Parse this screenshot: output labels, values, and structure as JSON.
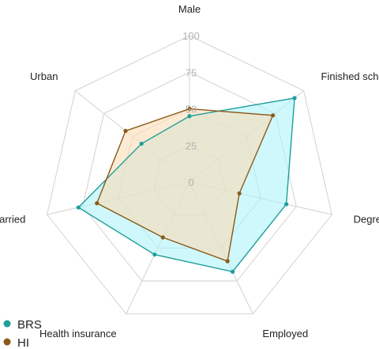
{
  "chart_data": {
    "type": "radar",
    "axes": [
      "Male",
      "Finished school",
      "Degree",
      "Employed",
      "Health insurance",
      "Married",
      "Urban"
    ],
    "r_ticks": [
      "0",
      "25",
      "50",
      "75",
      "100"
    ],
    "r_range": [
      0,
      100
    ],
    "series": [
      {
        "name": "BRS",
        "color": "#1f9e9a",
        "fill": "#aef4f8",
        "values": [
          45,
          92,
          68,
          68,
          55,
          78,
          42
        ]
      },
      {
        "name": "HI",
        "color": "#8a5a1a",
        "fill": "#fbdcb5",
        "values": [
          50,
          73,
          35,
          60,
          42,
          65,
          56
        ]
      }
    ],
    "legend_position": "bottom-left",
    "grid": true
  }
}
